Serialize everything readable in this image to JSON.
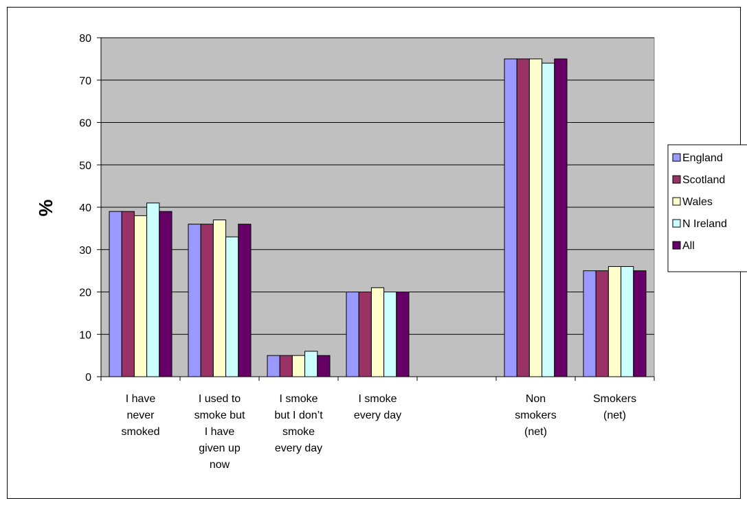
{
  "chart_data": {
    "type": "bar",
    "title": "",
    "xlabel": "",
    "ylabel": "%",
    "ylim": [
      0,
      80
    ],
    "yticks": [
      0,
      10,
      20,
      30,
      40,
      50,
      60,
      70,
      80
    ],
    "grid": true,
    "legend_position": "right",
    "plot_background": "#c0c0c0",
    "categories": [
      [
        "I have",
        "never",
        "smoked"
      ],
      [
        "I used to",
        "smoke but",
        "I have",
        "given up",
        "now"
      ],
      [
        "I smoke",
        "but I don’t",
        "smoke",
        "every day"
      ],
      [
        "I smoke",
        "every day"
      ],
      [],
      [
        "Non",
        "smokers",
        "(net)"
      ],
      [
        "Smokers",
        "(net)"
      ]
    ],
    "series": [
      {
        "name": "England",
        "color": "#9999ff",
        "values": [
          39,
          36,
          5,
          20,
          null,
          75,
          25
        ]
      },
      {
        "name": "Scotland",
        "color": "#993366",
        "values": [
          39,
          36,
          5,
          20,
          null,
          75,
          25
        ]
      },
      {
        "name": "Wales",
        "color": "#ffffcc",
        "values": [
          38,
          37,
          5,
          21,
          null,
          75,
          26
        ]
      },
      {
        "name": "N Ireland",
        "color": "#ccffff",
        "values": [
          41,
          33,
          6,
          20,
          null,
          74,
          26
        ]
      },
      {
        "name": "All",
        "color": "#660066",
        "values": [
          39,
          36,
          5,
          20,
          null,
          75,
          25
        ]
      }
    ]
  }
}
